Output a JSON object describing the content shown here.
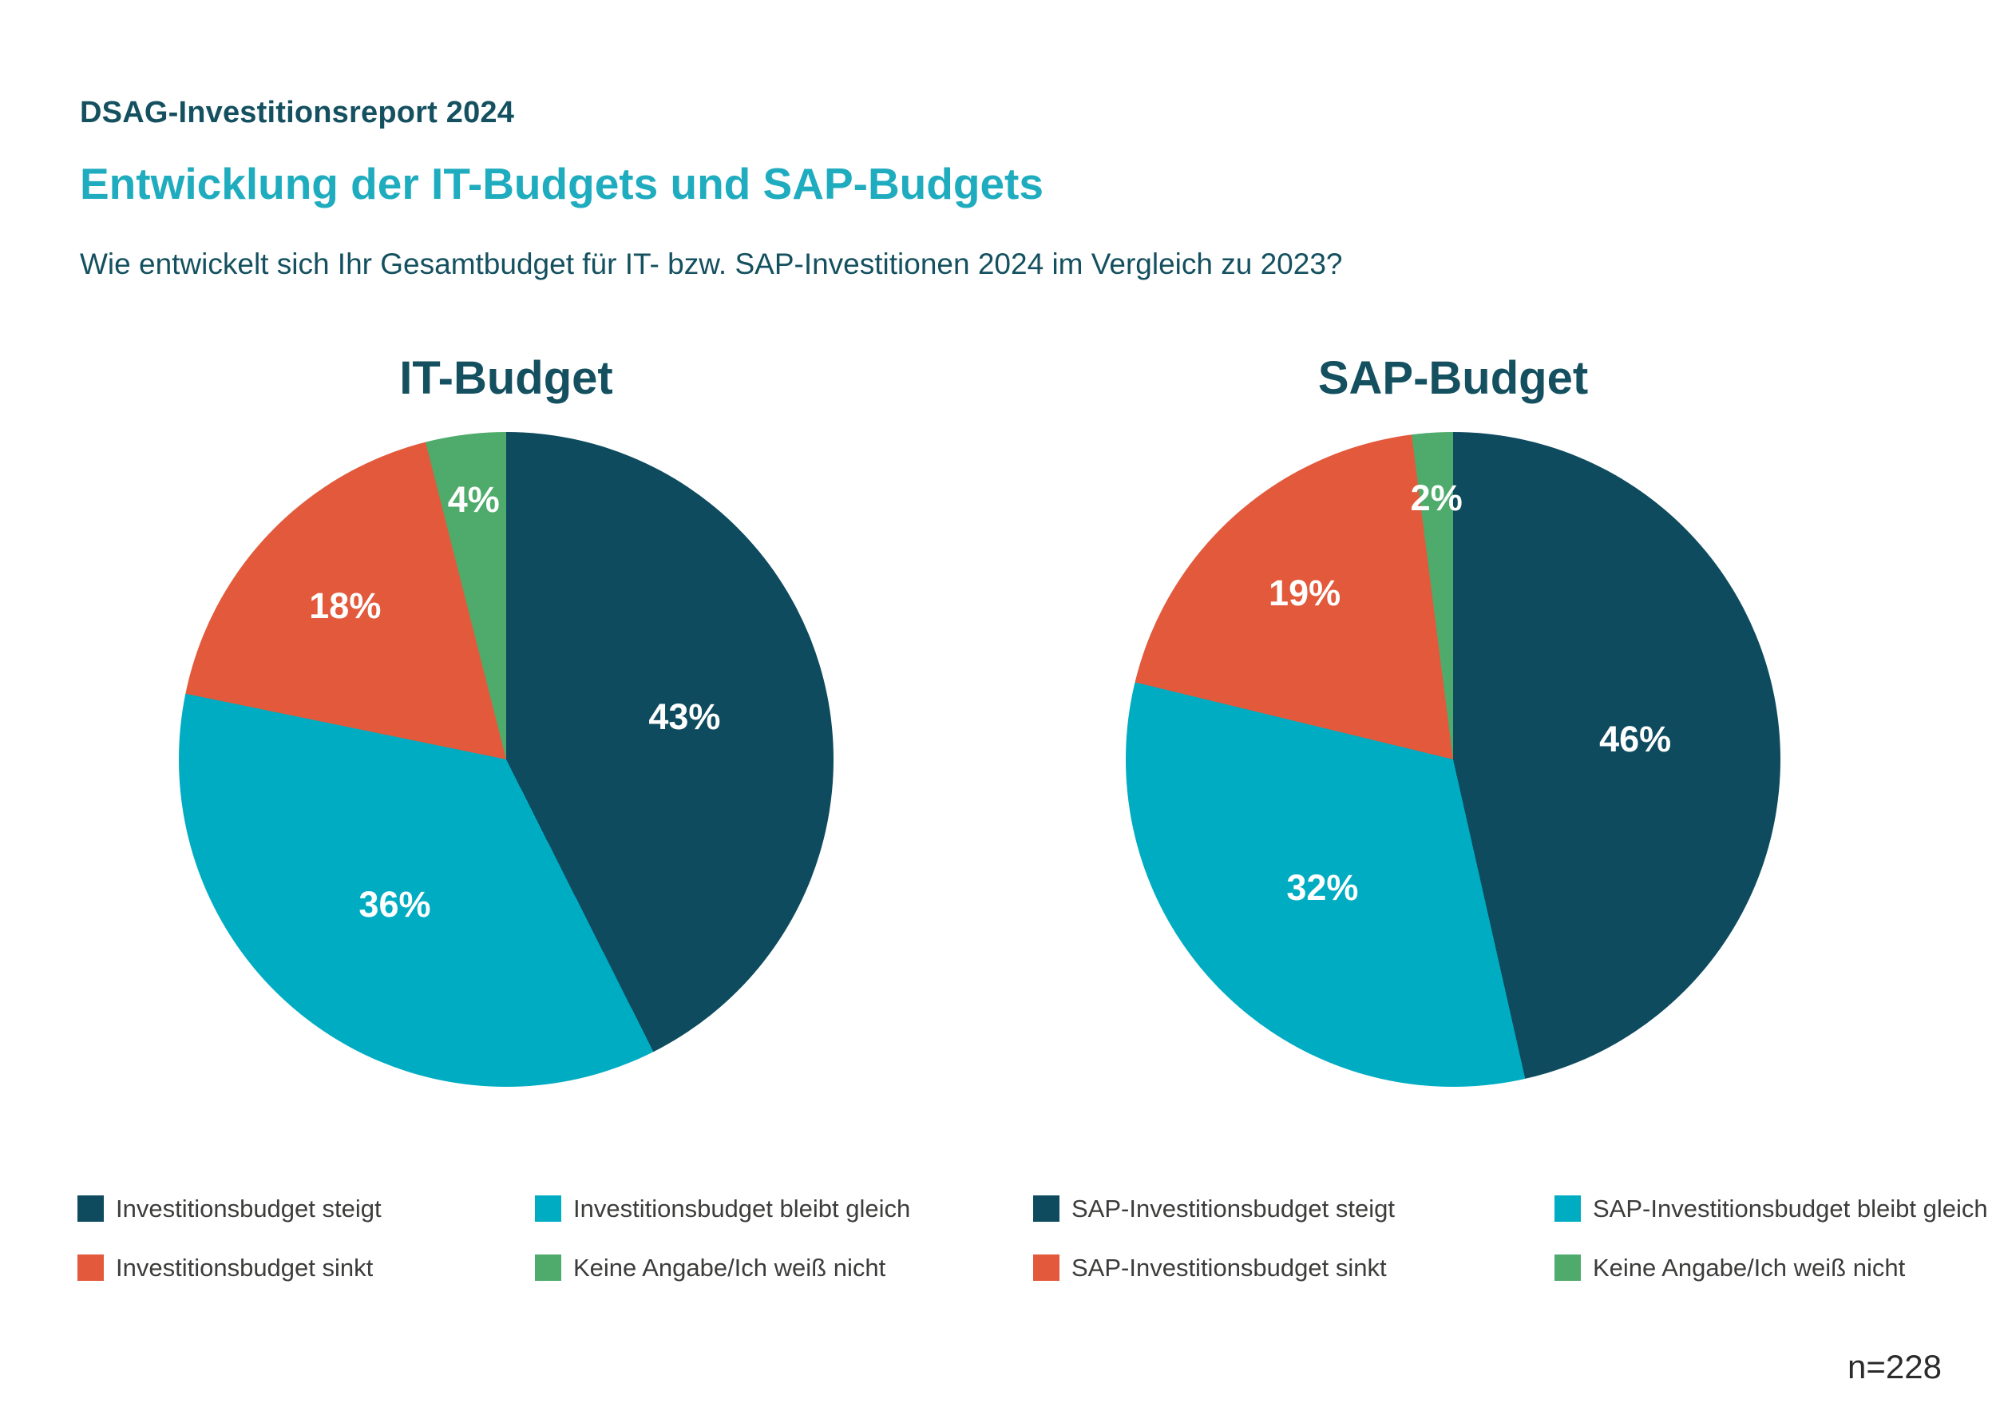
{
  "page": {
    "kicker": "DSAG-Investitionsreport 2024",
    "title": "Entwicklung der IT-Budgets und SAP-Budgets",
    "subtitle": "Wie entwickelt sich Ihr Gesamtbudget für IT- bzw. SAP-Investitionen 2024 im Vergleich zu 2023?",
    "sample_note": "n=228"
  },
  "colors": {
    "dark_petrol": "#0E4B5E",
    "cyan": "#00ACC2",
    "orange": "#E3593B",
    "green": "#4EAB6B",
    "title_teal": "#1FACBF",
    "heading_text": "#14505F",
    "legend_text": "#3C3C3B",
    "value_label_text": "#FFFFFF",
    "note_text": "#2B2B2B"
  },
  "chart_data": [
    {
      "type": "pie",
      "title": "IT-Budget",
      "start_angle_deg": 0,
      "direction": "clockwise",
      "value_label_style": "inside, white, bold, percent",
      "slices": [
        {
          "label": "Investitionsbudget steigt",
          "value": 43,
          "display": "43%",
          "color": "#0E4B5E"
        },
        {
          "label": "Investitionsbudget bleibt gleich",
          "value": 36,
          "display": "36%",
          "color": "#00ACC2"
        },
        {
          "label": "Investitionsbudget sinkt",
          "value": 18,
          "display": "18%",
          "color": "#E3593B"
        },
        {
          "label": "Keine Angabe/Ich weiß nicht",
          "value": 4,
          "display": "4%",
          "color": "#4EAB6B"
        }
      ],
      "legend": {
        "position": "bottom",
        "columns": 2,
        "order": [
          0,
          2,
          1,
          3
        ]
      }
    },
    {
      "type": "pie",
      "title": "SAP-Budget",
      "start_angle_deg": 0,
      "direction": "clockwise",
      "value_label_style": "inside, white, bold, percent",
      "slices": [
        {
          "label": "SAP-Investitionsbudget steigt",
          "value": 46,
          "display": "46%",
          "color": "#0E4B5E"
        },
        {
          "label": "SAP-Investitionsbudget bleibt gleich",
          "value": 32,
          "display": "32%",
          "color": "#00ACC2"
        },
        {
          "label": "SAP-Investitionsbudget sinkt",
          "value": 19,
          "display": "19%",
          "color": "#E3593B"
        },
        {
          "label": "Keine Angabe/Ich weiß nicht",
          "value": 2,
          "display": "2%",
          "color": "#4EAB6B"
        }
      ],
      "legend": {
        "position": "bottom",
        "columns": 2,
        "order": [
          0,
          2,
          1,
          3
        ]
      }
    }
  ]
}
